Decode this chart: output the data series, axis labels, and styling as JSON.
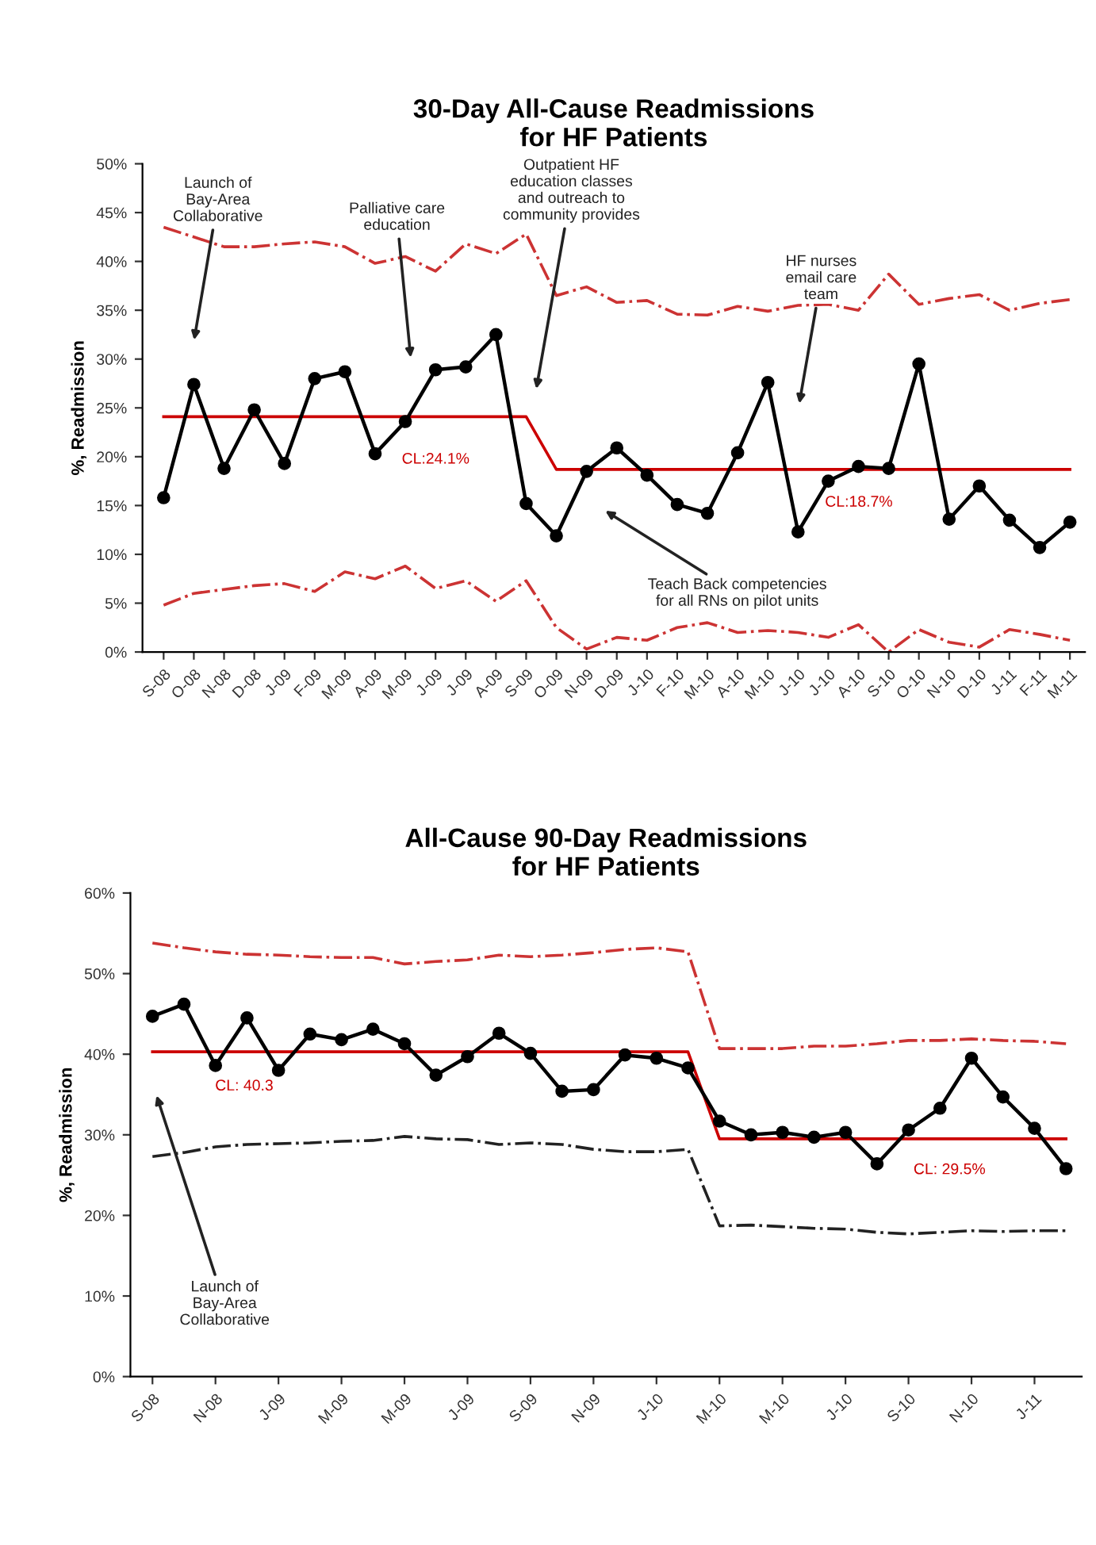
{
  "chart_data": [
    {
      "type": "line",
      "title": "30-Day All-Cause Readmissions\nfor HF Patients",
      "ylabel": "%, Readmission",
      "categories": [
        "S-08",
        "O-08",
        "N-08",
        "D-08",
        "J-09",
        "F-09",
        "M-09",
        "A-09",
        "M-09",
        "J-09",
        "J-09",
        "A-09",
        "S-09",
        "O-09",
        "N-09",
        "D-09",
        "J-10",
        "F-10",
        "M-10",
        "A-10",
        "M-10",
        "J-10",
        "J-10",
        "A-10",
        "S-10",
        "O-10",
        "N-10",
        "D-10",
        "J-11",
        "F-11",
        "M-11"
      ],
      "ylim": [
        0,
        50
      ],
      "yticks": [
        {
          "value": 0,
          "label": "0%"
        },
        {
          "value": 5,
          "label": "5%"
        },
        {
          "value": 10,
          "label": "10%"
        },
        {
          "value": 15,
          "label": "15%"
        },
        {
          "value": 20,
          "label": "20%"
        },
        {
          "value": 25,
          "label": "25%"
        },
        {
          "value": 30,
          "label": "30%"
        },
        {
          "value": 35,
          "label": "35%"
        },
        {
          "value": 40,
          "label": "40%"
        },
        {
          "value": 45,
          "label": "45%"
        },
        {
          "value": 50,
          "label": "50%"
        }
      ],
      "grid": false,
      "legend": false,
      "series": [
        {
          "color": "#cc3333",
          "line_style": "dashdot",
          "marker": "none",
          "values": [
            43.5,
            42.5,
            41.5,
            41.5,
            41.8,
            42.0,
            41.5,
            39.8,
            40.5,
            39.0,
            41.8,
            40.8,
            42.8,
            36.5,
            37.4,
            35.8,
            36.0,
            34.6,
            34.5,
            35.4,
            34.9,
            35.5,
            35.6,
            35.0,
            38.7,
            35.6,
            36.2,
            36.6,
            35.0,
            35.7,
            36.1
          ]
        },
        {
          "color": "#cc3333",
          "line_style": "dashdot",
          "marker": "none",
          "values": [
            4.8,
            6.0,
            6.4,
            6.8,
            7.0,
            6.2,
            8.2,
            7.5,
            8.8,
            6.5,
            7.3,
            5.2,
            7.3,
            2.5,
            0.3,
            1.5,
            1.2,
            2.5,
            3.0,
            2.0,
            2.2,
            2.0,
            1.5,
            2.8,
            0.0,
            2.3,
            1.0,
            0.5,
            2.3,
            1.8,
            1.2
          ]
        },
        {
          "color": "#cc0000",
          "line_style": "solid",
          "marker": "none",
          "values": [
            24.1,
            24.1,
            24.1,
            24.1,
            24.1,
            24.1,
            24.1,
            24.1,
            24.1,
            24.1,
            24.1,
            24.1,
            24.1,
            18.7,
            18.7,
            18.7,
            18.7,
            18.7,
            18.7,
            18.7,
            18.7,
            18.7,
            18.7,
            18.7,
            18.7,
            18.7,
            18.7,
            18.7,
            18.7,
            18.7,
            18.7
          ]
        },
        {
          "color": "#000000",
          "line_style": "solid",
          "marker": "circle",
          "values": [
            15.8,
            27.4,
            18.8,
            24.8,
            19.3,
            28.0,
            28.7,
            20.3,
            23.6,
            28.9,
            29.2,
            32.5,
            15.2,
            11.9,
            18.5,
            20.9,
            18.1,
            15.1,
            14.2,
            20.4,
            27.6,
            12.3,
            17.5,
            19.0,
            18.8,
            29.5,
            13.6,
            17.0,
            13.5,
            10.7,
            13.3
          ]
        }
      ],
      "annotations": [
        "Launch of\nBay-Area\nCollaborative",
        "Palliative care\neducation",
        "Outpatient HF\neducation classes\nand outreach to\ncommunity provides",
        "HF nurses\nemail care\nteam",
        "Teach Back competencies\nfor all RNs on pilot units",
        "CL:24.1%",
        "CL:18.7%"
      ]
    },
    {
      "type": "line",
      "title": "All-Cause 90-Day Readmissions\nfor HF Patients",
      "ylabel": "%, Readmission",
      "categories": [
        "S-08",
        null,
        "N-08",
        null,
        "J-09",
        null,
        "M-09",
        null,
        "M-09",
        null,
        "J-09",
        null,
        "S-09",
        null,
        "N-09",
        null,
        "J-10",
        null,
        "M-10",
        null,
        "M-10",
        null,
        "J-10",
        null,
        "S-10",
        null,
        "N-10",
        null,
        "J-11",
        null
      ],
      "ylim": [
        0,
        60
      ],
      "yticks": [
        {
          "value": 0,
          "label": "0%"
        },
        {
          "value": 10,
          "label": "10%"
        },
        {
          "value": 20,
          "label": "20%"
        },
        {
          "value": 30,
          "label": "30%"
        },
        {
          "value": 40,
          "label": "40%"
        },
        {
          "value": 50,
          "label": "50%"
        },
        {
          "value": 60,
          "label": "60%"
        }
      ],
      "grid": false,
      "legend": false,
      "series": [
        {
          "color": "#cc3333",
          "line_style": "dashdot",
          "marker": "none",
          "values": [
            53.8,
            53.2,
            52.7,
            52.4,
            52.3,
            52.1,
            52.0,
            52.0,
            51.2,
            51.5,
            51.7,
            52.3,
            52.1,
            52.3,
            52.6,
            53.0,
            53.2,
            52.7,
            40.7,
            40.7,
            40.7,
            41.0,
            41.0,
            41.3,
            41.7,
            41.7,
            41.9,
            41.7,
            41.6,
            41.3
          ]
        },
        {
          "color": "#222222",
          "line_style": "dashdot",
          "marker": "none",
          "values": [
            27.3,
            27.8,
            28.5,
            28.8,
            28.9,
            29.0,
            29.2,
            29.3,
            29.8,
            29.5,
            29.4,
            28.8,
            29.0,
            28.8,
            28.2,
            27.9,
            27.9,
            28.2,
            18.7,
            18.8,
            18.6,
            18.4,
            18.3,
            17.9,
            17.7,
            17.9,
            18.1,
            18.0,
            18.1,
            18.1
          ]
        },
        {
          "color": "#cc0000",
          "line_style": "solid",
          "marker": "none",
          "values": [
            40.3,
            40.3,
            40.3,
            40.3,
            40.3,
            40.3,
            40.3,
            40.3,
            40.3,
            40.3,
            40.3,
            40.3,
            40.3,
            40.3,
            40.3,
            40.3,
            40.3,
            40.3,
            29.5,
            29.5,
            29.5,
            29.5,
            29.5,
            29.5,
            29.5,
            29.5,
            29.5,
            29.5,
            29.5,
            29.5
          ]
        },
        {
          "color": "#000000",
          "line_style": "solid",
          "marker": "circle",
          "values": [
            44.7,
            46.2,
            38.6,
            44.5,
            38.0,
            42.5,
            41.8,
            43.1,
            41.3,
            37.4,
            39.7,
            42.6,
            40.1,
            35.4,
            35.6,
            39.9,
            39.5,
            38.3,
            31.7,
            30.0,
            30.3,
            29.7,
            30.3,
            26.4,
            30.6,
            33.3,
            39.5,
            34.7,
            30.8,
            25.8
          ]
        }
      ],
      "annotations": [
        "CL: 40.3",
        "Launch of\nBay-Area\nCollaborative",
        "CL: 29.5%"
      ]
    }
  ]
}
